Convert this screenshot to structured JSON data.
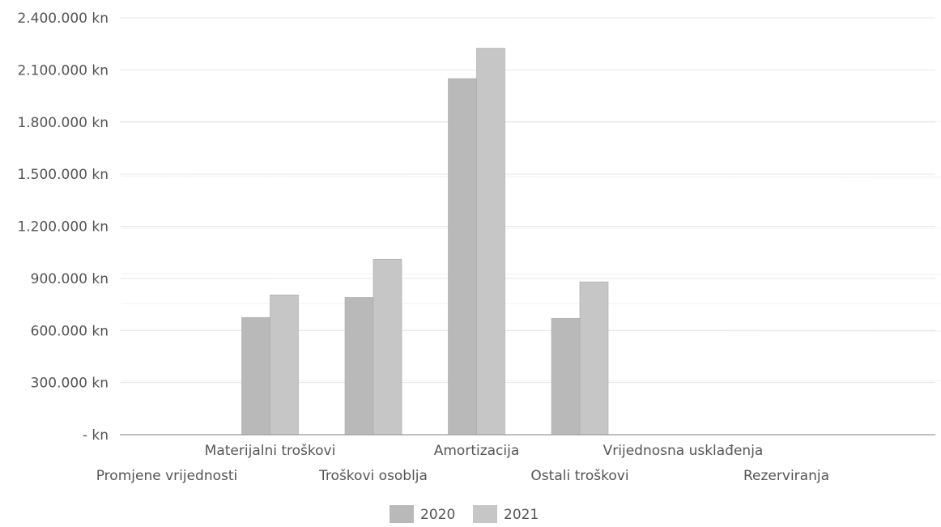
{
  "chart_data": {
    "type": "bar",
    "categories": [
      "Promjene vrijednosti",
      "Materijalni troškovi",
      "Troškovi osoblja",
      "Amortizacija",
      "Ostali troškovi",
      "Vrijednosna usklađenja",
      "Rezerviranja"
    ],
    "series": [
      {
        "name": "2020",
        "color": "#b9b9b9",
        "values": [
          0,
          675000,
          790000,
          2050000,
          670000,
          0,
          0
        ]
      },
      {
        "name": "2021",
        "color": "#c6c6c6",
        "values": [
          0,
          805000,
          1010000,
          2225000,
          880000,
          0,
          0
        ]
      }
    ],
    "y_tick_labels": [
      "- kn",
      "300.000 kn",
      "600.000 kn",
      "900.000 kn",
      "1.200.000 kn",
      "1.500.000 kn",
      "1.800.000 kn",
      "2.100.000 kn",
      "2.400.000 kn"
    ],
    "ylim": [
      0,
      2400000
    ],
    "legend_position": "bottom",
    "grid": true
  }
}
